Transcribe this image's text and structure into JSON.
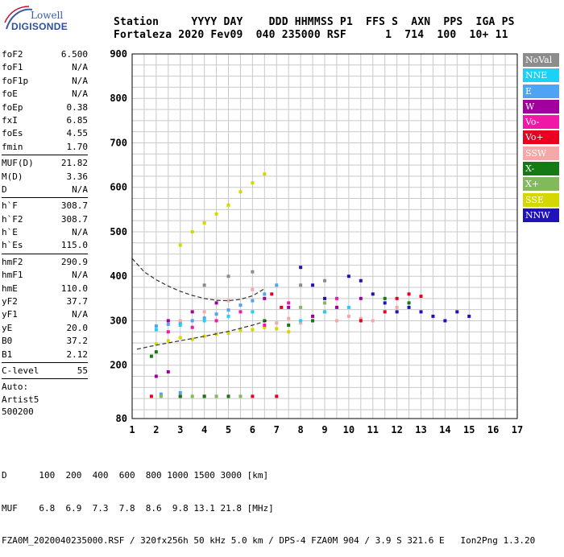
{
  "logo": {
    "brand": "Lowell",
    "product": "DIGISONDE"
  },
  "header": {
    "line1": "Station     YYYY DAY    DDD HHMMSS P1  FFS S  AXN  PPS  IGA PS",
    "line2": "Fortaleza 2020 Fev09  040 235000 RSF      1  714  100  10+ 11"
  },
  "params": {
    "group1": [
      {
        "k": "foF2",
        "v": "6.500"
      },
      {
        "k": "foF1",
        "v": "N/A"
      },
      {
        "k": "foF1p",
        "v": "N/A"
      },
      {
        "k": "foE",
        "v": "N/A"
      },
      {
        "k": "foEp",
        "v": "0.38"
      },
      {
        "k": "fxI",
        "v": "6.85"
      },
      {
        "k": "foEs",
        "v": "4.55"
      },
      {
        "k": "fmin",
        "v": "1.70"
      }
    ],
    "group2": [
      {
        "k": "MUF(D)",
        "v": "21.82"
      },
      {
        "k": "M(D)",
        "v": "3.36"
      },
      {
        "k": "D",
        "v": "N/A"
      }
    ],
    "group3": [
      {
        "k": "h`F",
        "v": "308.7"
      },
      {
        "k": "h`F2",
        "v": "308.7"
      },
      {
        "k": "h`E",
        "v": "N/A"
      },
      {
        "k": "h`Es",
        "v": "115.0"
      }
    ],
    "group4": [
      {
        "k": "hmF2",
        "v": "290.9"
      },
      {
        "k": "hmF1",
        "v": "N/A"
      },
      {
        "k": "hmE",
        "v": "110.0"
      },
      {
        "k": "yF2",
        "v": "37.7"
      },
      {
        "k": "yF1",
        "v": "N/A"
      },
      {
        "k": "yE",
        "v": "20.0"
      },
      {
        "k": "B0",
        "v": "37.2"
      },
      {
        "k": "B1",
        "v": "2.12"
      }
    ],
    "group5": [
      {
        "k": "C-level",
        "v": "55"
      }
    ],
    "auto": [
      "Auto:",
      "Artist5",
      "500200"
    ]
  },
  "legend": [
    {
      "label": "NoVal",
      "color": "#8c8c8c"
    },
    {
      "label": "NNE",
      "color": "#19d2f5"
    },
    {
      "label": "E",
      "color": "#4ea4f2"
    },
    {
      "label": "W",
      "color": "#a1009f"
    },
    {
      "label": "Vo-",
      "color": "#f018a6"
    },
    {
      "label": "Vo+",
      "color": "#e8001e"
    },
    {
      "label": "SSW",
      "color": "#f5a8a8"
    },
    {
      "label": "X-",
      "color": "#157a14"
    },
    {
      "label": "X+",
      "color": "#82b95a"
    },
    {
      "label": "SSE",
      "color": "#d5d800"
    },
    {
      "label": "NNW",
      "color": "#1f12b8"
    }
  ],
  "footer": {
    "line1": "D      100  200  400  600  800 1000 1500 3000 [km]",
    "line2": "MUF    6.8  6.9  7.3  7.8  8.6  9.8 13.1 21.8 [MHz]",
    "line3": "FZA0M_2020040235000.RSF / 320fx256h 50 kHz 5.0 km / DPS-4 FZA0M 904 / 3.9 S 321.6 E   Ion2Png 1.3.20"
  },
  "chart_data": {
    "type": "scatter",
    "xlim": [
      1,
      17
    ],
    "ylim": [
      80,
      900
    ],
    "x_ticks": [
      1,
      2,
      3,
      4,
      5,
      6,
      7,
      8,
      9,
      10,
      11,
      12,
      13,
      14,
      15,
      16,
      17
    ],
    "y_ticks": [
      80,
      200,
      300,
      400,
      500,
      600,
      700,
      800,
      900
    ],
    "grid": true,
    "series": [
      {
        "name": "SSE",
        "color": "#d5d800",
        "points": [
          [
            2.0,
            248
          ],
          [
            2.5,
            255
          ],
          [
            3.0,
            262
          ],
          [
            3.5,
            258
          ],
          [
            4.0,
            265
          ],
          [
            4.5,
            270
          ],
          [
            5.0,
            272
          ],
          [
            5.5,
            278
          ],
          [
            6.0,
            280
          ],
          [
            6.5,
            285
          ],
          [
            7.0,
            282
          ],
          [
            7.5,
            275
          ],
          [
            3.0,
            470
          ],
          [
            3.5,
            500
          ],
          [
            4.0,
            520
          ],
          [
            4.5,
            540
          ],
          [
            5.0,
            560
          ],
          [
            5.5,
            590
          ],
          [
            6.0,
            610
          ],
          [
            6.5,
            630
          ]
        ]
      },
      {
        "name": "E",
        "color": "#4ea4f2",
        "points": [
          [
            2.0,
            288
          ],
          [
            2.5,
            292
          ],
          [
            3.0,
            296
          ],
          [
            3.5,
            300
          ],
          [
            4.0,
            306
          ],
          [
            4.5,
            315
          ],
          [
            5.0,
            324
          ],
          [
            5.5,
            335
          ],
          [
            6.0,
            345
          ],
          [
            6.5,
            360
          ],
          [
            7.0,
            380
          ],
          [
            2.2,
            135
          ],
          [
            3.0,
            138
          ]
        ]
      },
      {
        "name": "SSW",
        "color": "#f5a8a8",
        "points": [
          [
            3.0,
            300
          ],
          [
            4.0,
            320
          ],
          [
            5.0,
            345
          ],
          [
            6.0,
            370
          ],
          [
            7.0,
            295
          ],
          [
            7.5,
            305
          ],
          [
            8.0,
            295
          ],
          [
            8.5,
            310
          ],
          [
            9.0,
            320
          ],
          [
            9.5,
            300
          ],
          [
            10.0,
            310
          ],
          [
            10.5,
            305
          ],
          [
            11.0,
            300
          ],
          [
            12.0,
            330
          ]
        ]
      },
      {
        "name": "NNW",
        "color": "#1f12b8",
        "points": [
          [
            8.0,
            420
          ],
          [
            8.5,
            380
          ],
          [
            9.0,
            350
          ],
          [
            10.0,
            400
          ],
          [
            10.5,
            390
          ],
          [
            11.0,
            360
          ],
          [
            11.5,
            340
          ],
          [
            12.0,
            320
          ],
          [
            12.5,
            330
          ],
          [
            13.0,
            320
          ],
          [
            13.5,
            310
          ],
          [
            14.0,
            300
          ],
          [
            14.5,
            320
          ],
          [
            15.0,
            310
          ]
        ]
      },
      {
        "name": "W",
        "color": "#a1009f",
        "points": [
          [
            2.5,
            300
          ],
          [
            3.5,
            320
          ],
          [
            4.5,
            340
          ],
          [
            6.5,
            350
          ],
          [
            7.5,
            330
          ],
          [
            8.5,
            310
          ],
          [
            9.5,
            330
          ],
          [
            10.5,
            350
          ],
          [
            2.0,
            175
          ],
          [
            2.5,
            185
          ]
        ]
      },
      {
        "name": "Vo-",
        "color": "#f018a6",
        "points": [
          [
            2.5,
            275
          ],
          [
            3.5,
            285
          ],
          [
            4.5,
            300
          ],
          [
            5.5,
            320
          ],
          [
            6.5,
            290
          ],
          [
            7.5,
            340
          ],
          [
            8.5,
            300
          ],
          [
            9.5,
            350
          ]
        ]
      },
      {
        "name": "Vo+",
        "color": "#e8001e",
        "points": [
          [
            6.8,
            360
          ],
          [
            7.2,
            330
          ],
          [
            10.5,
            300
          ],
          [
            11.5,
            320
          ],
          [
            12.0,
            350
          ],
          [
            12.5,
            360
          ],
          [
            13.0,
            355
          ],
          [
            1.8,
            130
          ],
          [
            3.0,
            130
          ],
          [
            4.0,
            130
          ],
          [
            5.0,
            130
          ],
          [
            6.0,
            130
          ],
          [
            7.0,
            130
          ]
        ]
      },
      {
        "name": "X-",
        "color": "#157a14",
        "points": [
          [
            1.8,
            220
          ],
          [
            2.0,
            230
          ],
          [
            6.5,
            300
          ],
          [
            7.5,
            290
          ],
          [
            8.5,
            300
          ],
          [
            11.5,
            350
          ],
          [
            12.5,
            340
          ],
          [
            3.0,
            130
          ],
          [
            4.0,
            130
          ],
          [
            5.0,
            130
          ]
        ]
      },
      {
        "name": "X+",
        "color": "#82b95a",
        "points": [
          [
            2.2,
            130
          ],
          [
            3.5,
            130
          ],
          [
            4.5,
            130
          ],
          [
            5.5,
            130
          ],
          [
            8.0,
            330
          ],
          [
            9.0,
            340
          ]
        ]
      },
      {
        "name": "NNE",
        "color": "#19d2f5",
        "points": [
          [
            2.0,
            280
          ],
          [
            3.0,
            290
          ],
          [
            4.0,
            300
          ],
          [
            5.0,
            310
          ],
          [
            6.0,
            320
          ],
          [
            8.0,
            300
          ],
          [
            9.0,
            320
          ],
          [
            10.0,
            330
          ]
        ]
      },
      {
        "name": "NoVal",
        "color": "#8c8c8c",
        "points": [
          [
            4.0,
            380
          ],
          [
            5.0,
            400
          ],
          [
            6.0,
            410
          ],
          [
            8.0,
            380
          ],
          [
            9.0,
            390
          ]
        ]
      }
    ],
    "curves": [
      {
        "style": "dashed",
        "points": [
          [
            1.0,
            440
          ],
          [
            1.5,
            410
          ],
          [
            2.0,
            392
          ],
          [
            2.5,
            378
          ],
          [
            3.0,
            366
          ],
          [
            3.5,
            357
          ],
          [
            4.0,
            350
          ],
          [
            4.5,
            346
          ],
          [
            5.0,
            345
          ],
          [
            5.5,
            348
          ],
          [
            6.0,
            356
          ],
          [
            6.5,
            372
          ]
        ]
      },
      {
        "style": "dashed",
        "points": [
          [
            1.2,
            236
          ],
          [
            2.0,
            245
          ],
          [
            3.0,
            255
          ],
          [
            4.0,
            265
          ],
          [
            5.0,
            276
          ],
          [
            6.0,
            290
          ],
          [
            6.6,
            300
          ]
        ]
      }
    ]
  }
}
